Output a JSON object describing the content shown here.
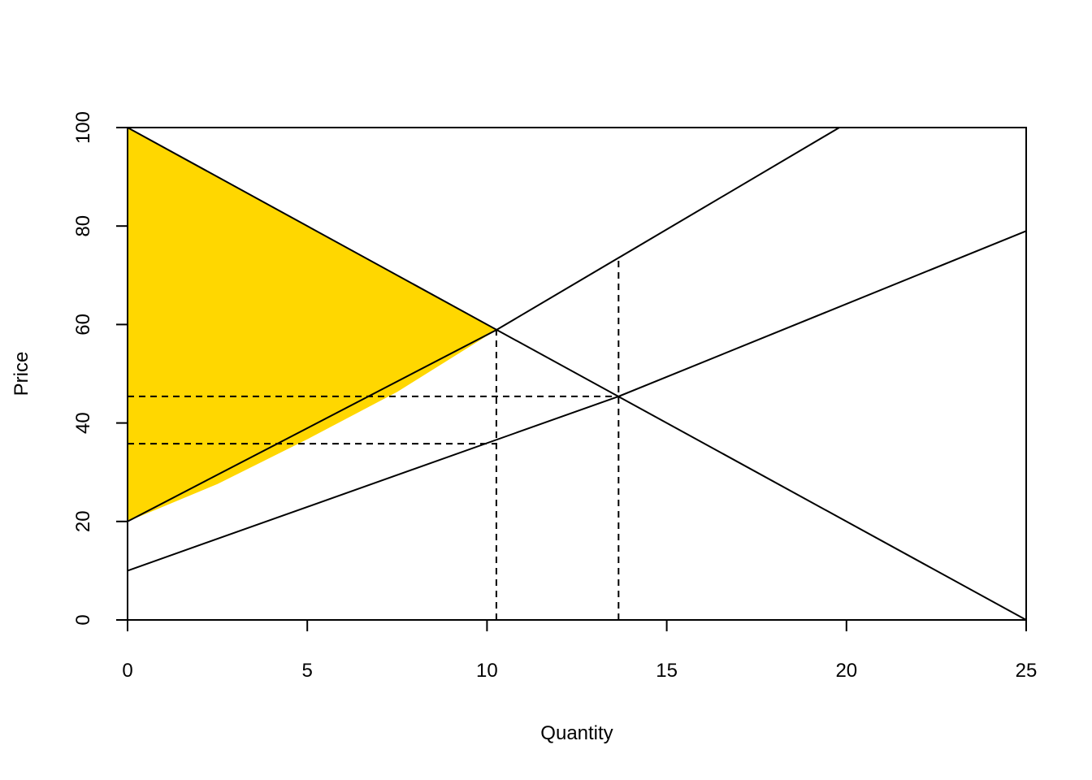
{
  "chart_data": {
    "type": "line",
    "title": "",
    "xlabel": "Quantity",
    "ylabel": "Price",
    "xlim": [
      0,
      25
    ],
    "ylim": [
      0,
      100
    ],
    "x_ticks": [
      "0",
      "5",
      "10",
      "15",
      "20",
      "25"
    ],
    "y_ticks": [
      "0",
      "20",
      "40",
      "60",
      "80",
      "100"
    ],
    "grid": false,
    "legend": "none",
    "series": [
      {
        "role": "demand",
        "style": "solid",
        "x": [
          0,
          25
        ],
        "y": [
          100,
          0
        ]
      },
      {
        "role": "supply-upper",
        "style": "solid",
        "x": [
          0,
          10.26,
          19.8
        ],
        "y": [
          20,
          58.9,
          100
        ]
      },
      {
        "role": "supply-lower",
        "style": "solid",
        "x": [
          0,
          13.66,
          25
        ],
        "y": [
          10,
          45.4,
          79
        ]
      }
    ],
    "guides": [
      {
        "style": "dashed",
        "x": [
          10.26,
          10.26
        ],
        "y": [
          0,
          58.9
        ]
      },
      {
        "style": "dashed",
        "x": [
          13.66,
          13.66
        ],
        "y": [
          0,
          73
        ]
      },
      {
        "style": "dashed",
        "x": [
          0,
          13.66
        ],
        "y": [
          45.4,
          45.4
        ]
      },
      {
        "style": "dashed",
        "x": [
          0,
          10.26
        ],
        "y": [
          35.8,
          35.8
        ]
      }
    ],
    "shaded_region": {
      "color": "#FFD700",
      "x": [
        0,
        10.26,
        7.5,
        5,
        2.5,
        0
      ],
      "y": [
        100,
        58.9,
        46.3,
        36.7,
        27.6,
        20
      ]
    }
  }
}
